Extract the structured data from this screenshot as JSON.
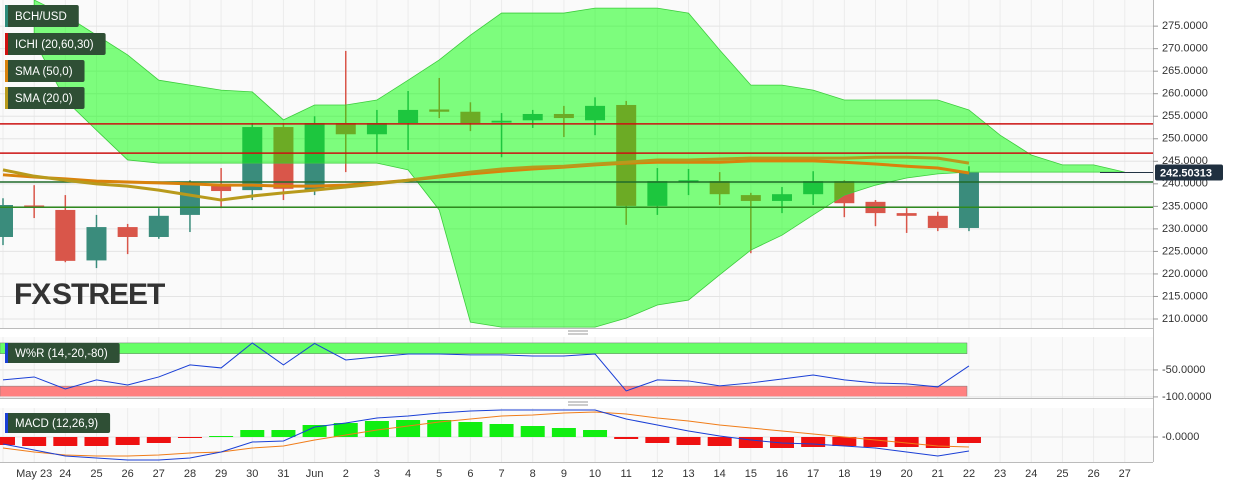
{
  "chart_data": [
    {
      "type": "candlestick",
      "name": "BCH/USD",
      "categories": [
        null,
        "May 23",
        "24",
        "25",
        "26",
        "27",
        "28",
        "29",
        "30",
        "31",
        "Jun",
        "2",
        "3",
        "4",
        "5",
        "6",
        "7",
        "8",
        "9",
        "10",
        "11",
        "12",
        "13",
        "14",
        "15",
        "16",
        "17",
        "18",
        "19",
        "20",
        "21",
        "22",
        "23",
        "24",
        "25",
        "26",
        "27"
      ],
      "open": [
        228.2,
        235.2,
        234.2,
        223.0,
        230.4,
        228.2,
        233.1,
        240.0,
        238.6,
        252.6,
        238.6,
        253.5,
        251.0,
        253.5,
        256.5,
        256.0,
        253.6,
        254.1,
        255.5,
        254.1,
        257.5,
        235.1,
        240.6,
        240.6,
        237.5,
        236.2,
        237.7,
        240.6,
        236.0,
        233.5,
        232.9,
        230.2,
        null,
        null,
        null,
        null,
        null
      ],
      "high": [
        236.8,
        239.7,
        237.5,
        233.1,
        231.1,
        234.6,
        240.8,
        243.5,
        253.5,
        253.5,
        255.0,
        269.5,
        256.4,
        260.6,
        263.5,
        258.1,
        255.7,
        256.4,
        257.3,
        259.2,
        258.4,
        243.5,
        243.3,
        242.6,
        238.0,
        239.3,
        242.8,
        240.8,
        236.4,
        234.6,
        233.8,
        243.9,
        null,
        null,
        null,
        null,
        null
      ],
      "low": [
        226.4,
        232.4,
        222.6,
        221.3,
        224.4,
        227.8,
        229.3,
        234.6,
        236.4,
        236.4,
        237.5,
        242.6,
        246.8,
        247.5,
        254.6,
        251.7,
        245.9,
        252.4,
        250.4,
        250.8,
        230.9,
        233.1,
        237.5,
        235.3,
        224.6,
        233.5,
        235.3,
        232.6,
        230.6,
        229.1,
        229.5,
        229.5,
        null,
        null,
        null,
        null,
        null
      ],
      "close": [
        235.3,
        234.8,
        222.9,
        230.4,
        228.2,
        232.9,
        240.0,
        238.4,
        252.6,
        238.9,
        253.5,
        251.0,
        253.5,
        256.4,
        256.0,
        253.5,
        254.0,
        255.5,
        254.6,
        257.3,
        235.1,
        240.6,
        240.8,
        237.7,
        236.2,
        237.7,
        240.6,
        235.7,
        233.5,
        232.9,
        230.2,
        242.5,
        null,
        null,
        null,
        null,
        null
      ],
      "up_color": "#3a8c7c",
      "down_color": "#d9564a",
      "legend_color": "#2e8b7a",
      "ichimoku": {
        "name": "ICHI (20,60,30)",
        "color": "#00ff00",
        "legend_color": "#d01010",
        "upper": [
          null,
          280.8,
          277.4,
          273.0,
          268.6,
          263.0,
          261.9,
          260.8,
          260.4,
          254.2,
          257.5,
          257.5,
          258.6,
          263.0,
          267.5,
          273.0,
          277.9,
          277.9,
          277.9,
          279.0,
          279.0,
          279.0,
          277.9,
          269.7,
          261.9,
          261.9,
          260.8,
          258.6,
          258.6,
          258.6,
          258.6,
          256.4,
          250.8,
          246.4,
          244.2,
          244.2,
          242.6
        ],
        "lower": [
          null,
          271.9,
          258.6,
          251.9,
          245.3,
          244.6,
          244.6,
          244.6,
          244.6,
          244.6,
          244.6,
          244.6,
          244.6,
          243.1,
          234.2,
          209.3,
          208.2,
          208.2,
          208.2,
          208.2,
          210.2,
          213.1,
          214.2,
          219.8,
          225.3,
          228.6,
          233.1,
          237.5,
          239.7,
          241.3,
          242.2,
          242.6,
          242.6,
          242.6,
          242.6,
          242.6,
          242.6
        ]
      },
      "series": [
        {
          "name": "SMA (50,0)",
          "color": "#d9820c",
          "values": [
            242.0,
            241.5,
            241.1,
            240.6,
            240.4,
            240.2,
            240.0,
            239.7,
            239.7,
            239.5,
            239.5,
            239.7,
            240.2,
            240.8,
            241.5,
            242.2,
            242.8,
            243.3,
            243.7,
            244.2,
            244.6,
            244.8,
            244.8,
            244.8,
            245.1,
            245.1,
            245.1,
            244.8,
            244.4,
            243.9,
            243.5,
            242.4,
            null,
            null,
            null,
            null,
            null
          ]
        },
        {
          "name": "SMA (20,0)",
          "color": "#b89a1c",
          "values": [
            243.1,
            241.7,
            240.8,
            240.0,
            239.5,
            238.6,
            237.5,
            236.4,
            237.3,
            238.0,
            238.6,
            239.3,
            240.0,
            240.8,
            241.7,
            242.6,
            243.3,
            243.7,
            243.9,
            244.4,
            244.8,
            245.3,
            245.3,
            245.5,
            245.7,
            245.7,
            245.7,
            245.7,
            245.9,
            245.9,
            245.7,
            244.6,
            null,
            null,
            null,
            null,
            null
          ]
        }
      ],
      "hlines": [
        {
          "value": 253.3,
          "color": "#cc1111"
        },
        {
          "value": 246.8,
          "color": "#cc1111"
        },
        {
          "value": 240.4,
          "color": "#1f6b2a"
        },
        {
          "value": 234.8,
          "color": "#2f8a1f"
        }
      ],
      "last_price": 242.50313,
      "watermark": [
        "FX",
        "STREET"
      ],
      "ylim": [
        208.0,
        280.8
      ],
      "yticks": [
        {
          "value": 210,
          "label": "210.0000"
        },
        {
          "value": 215,
          "label": "215.0000"
        },
        {
          "value": 220,
          "label": "220.0000"
        },
        {
          "value": 225,
          "label": "225.0000"
        },
        {
          "value": 230,
          "label": "230.0000"
        },
        {
          "value": 235,
          "label": "235.0000"
        },
        {
          "value": 240,
          "label": "240.0000"
        },
        {
          "value": 245,
          "label": "245.0000"
        },
        {
          "value": 250,
          "label": "250.0000"
        },
        {
          "value": 255,
          "label": "255.0000"
        },
        {
          "value": 260,
          "label": "260.0000"
        },
        {
          "value": 265,
          "label": "265.0000"
        },
        {
          "value": 270,
          "label": "270.0000"
        },
        {
          "value": 275,
          "label": "275.0000"
        }
      ],
      "grid": true
    },
    {
      "type": "line",
      "name": "W%R (14,-20,-80)",
      "color": "#1a3fd6",
      "legend_color": "#1a3fd6",
      "values": [
        -68.5,
        -63.0,
        -85.2,
        -68.5,
        -77.8,
        -63.0,
        -40.7,
        -46.3,
        0.0,
        -40.7,
        -1.0,
        -31.5,
        -25.9,
        -20.4,
        -20.4,
        -22.2,
        -22.2,
        -24.1,
        -24.1,
        -20.4,
        -88.9,
        -68.5,
        -70.4,
        -79.6,
        -74.1,
        -66.7,
        -59.3,
        -68.5,
        -74.1,
        -75.9,
        -81.5,
        -42.6,
        null,
        null,
        null,
        null,
        null
      ],
      "bands": [
        {
          "from": -20,
          "to": 0,
          "color": "#66ff66"
        },
        {
          "from": -100,
          "to": -80,
          "color": "#ff8080"
        }
      ],
      "ylim": [
        -102,
        11
      ],
      "yticks": [
        {
          "value": -50,
          "label": "-50.0000"
        },
        {
          "value": -100,
          "label": "-100.0000"
        }
      ]
    },
    {
      "type": "macd",
      "name": "MACD (12,26,9)",
      "legend_color": "#1a3fd6",
      "histogram": [
        -0.8,
        -0.9,
        -0.9,
        -0.9,
        -0.8,
        -0.6,
        -0.1,
        0.1,
        0.7,
        0.7,
        1.2,
        1.4,
        1.6,
        1.7,
        1.7,
        1.5,
        1.3,
        1.1,
        0.9,
        0.7,
        -0.2,
        -0.6,
        -0.8,
        -0.9,
        -1.1,
        -1.1,
        -1.0,
        -0.9,
        -1.0,
        -1.0,
        -1.1,
        -0.6,
        null,
        null,
        null,
        null,
        null
      ],
      "macd": [
        -0.7,
        -1.3,
        -1.9,
        -2.1,
        -2.3,
        -2.3,
        -2.1,
        -1.5,
        -0.5,
        -0.4,
        1.0,
        1.4,
        1.9,
        2.1,
        2.4,
        2.6,
        2.7,
        2.7,
        2.7,
        2.7,
        1.8,
        1.2,
        0.6,
        0.1,
        -0.3,
        -0.6,
        -0.7,
        -0.9,
        -1.1,
        -1.5,
        -1.9,
        -1.4,
        null,
        null,
        null,
        null,
        null
      ],
      "signal": [
        -1.1,
        -1.5,
        -1.8,
        -1.9,
        -1.9,
        -1.8,
        -1.6,
        -1.5,
        -1.1,
        -0.9,
        -0.3,
        0.2,
        0.7,
        1.1,
        1.5,
        1.8,
        2.1,
        2.2,
        2.4,
        2.5,
        2.3,
        1.9,
        1.6,
        1.2,
        0.9,
        0.6,
        0.3,
        0.0,
        -0.3,
        -0.6,
        -0.9,
        -1.0,
        null,
        null,
        null,
        null,
        null
      ],
      "pos_color": "#11ee11",
      "neg_color": "#ee1111",
      "macd_color": "#1a3fd6",
      "signal_color": "#f07d1a",
      "ylim": [
        -2.5,
        2.9
      ],
      "yticks": [
        {
          "value": 0,
          "label": "-0.0000"
        }
      ]
    }
  ]
}
